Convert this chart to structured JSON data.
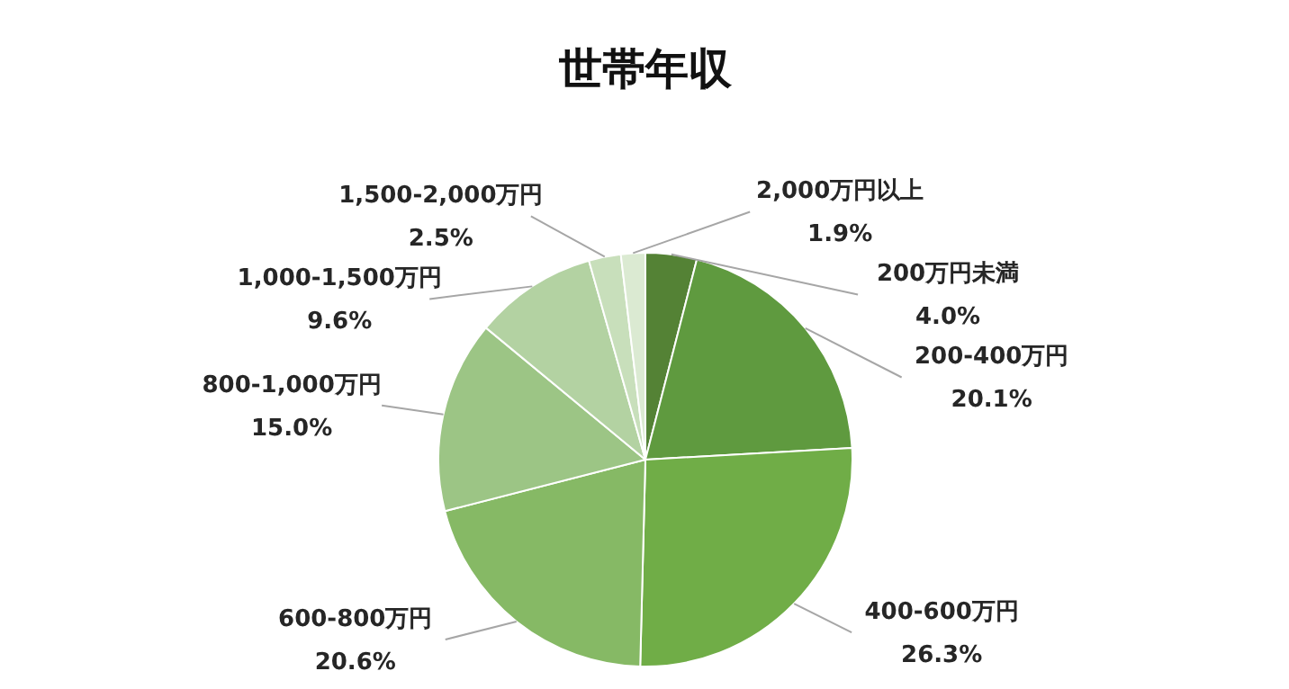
{
  "chart_data": {
    "type": "pie",
    "title": "世帯年収",
    "categories": [
      "200万円未満",
      "200-400万円",
      "400-600万円",
      "600-800万円",
      "800-1,000万円",
      "1,000-1,500万円",
      "1,500-2,000万円",
      "2,000万円以上"
    ],
    "values": [
      4.0,
      20.1,
      26.3,
      20.6,
      15.0,
      9.6,
      2.5,
      1.9
    ],
    "colors": [
      "#548235",
      "#5f9a3f",
      "#70ad47",
      "#86b965",
      "#9cc585",
      "#b3d2a2",
      "#c8dfbb",
      "#dbead2"
    ],
    "value_labels": [
      "4.0%",
      "20.1%",
      "26.3%",
      "20.6%",
      "15.0%",
      "9.6%",
      "2.5%",
      "1.9%"
    ]
  }
}
